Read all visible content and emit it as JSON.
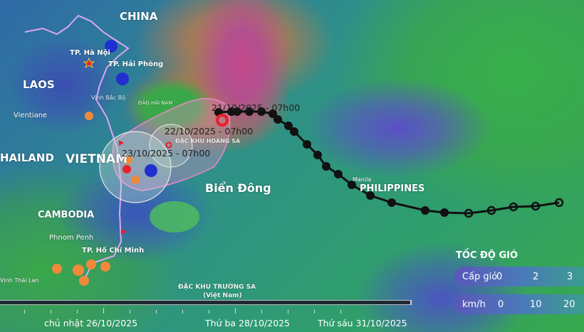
{
  "map": {
    "countries": [
      "CHINA",
      "LAOS",
      "HAILAND",
      "VIETNAM",
      "CAMBODIA",
      "PHILIPPINES"
    ],
    "cities": [
      "TP. Hà Nội",
      "TP. Hải Phòng",
      "Vientiane",
      "Phnom Penh",
      "TP. Hồ Chí Minh",
      "Manila",
      "Vịnh Thái Lan"
    ],
    "places": [
      "Vịnh Bắc Bộ",
      "ĐẢO HẢI NAM",
      "ĐẶC KHU HOÀNG SA",
      "Biển Đông",
      "ĐẶC KHU TRƯỜNG SA",
      "(Việt Nam)"
    ],
    "storm_track": {
      "labels": [
        "21/10/2025 - 07h00",
        "22/10/2025 - 07h00",
        "23/10/2025 - 07h00"
      ],
      "track_color": "#111111",
      "current_position_color": "#e8202a",
      "cone_color": "#e889c8"
    },
    "icons": [
      "wind-warning-flag-icon",
      "rain-drop-icon",
      "capital-star-icon",
      "low-pressure-icon",
      "storm-symbol-icon"
    ]
  },
  "legend": {
    "title": "TỐC ĐỘ GIÓ",
    "rows": [
      {
        "label": "Cấp gió",
        "values": [
          "0",
          "2",
          "3"
        ]
      },
      {
        "label": "km/h",
        "values": [
          "0",
          "10",
          "20"
        ]
      }
    ]
  },
  "timeline": {
    "dates": [
      "chủ nhật 26/10/2025",
      "Thứ ba 28/10/2025",
      "Thứ sáu 31/10/2025"
    ]
  }
}
